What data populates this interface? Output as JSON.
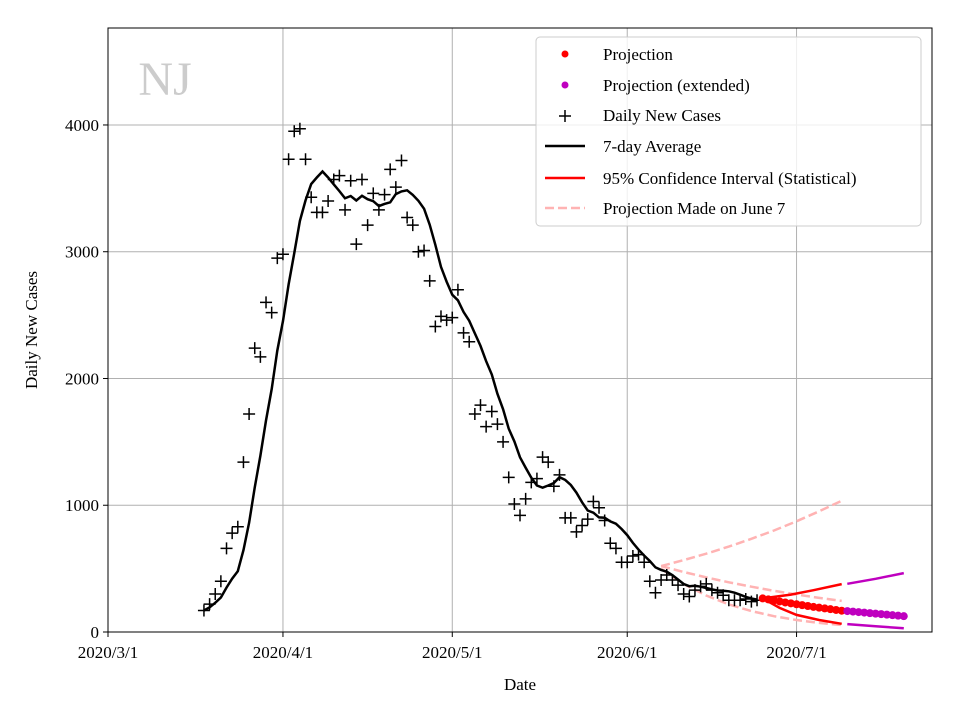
{
  "chart_data": {
    "type": "line",
    "title": "NJ",
    "xlabel": "Date",
    "ylabel": "Daily New Cases",
    "xlim": [
      "2020-03-01",
      "2020-07-25"
    ],
    "ylim": [
      0,
      4765
    ],
    "grid": true,
    "legend_position": "top-right",
    "x_ticks": [
      "2020/3/1",
      "2020/4/1",
      "2020/5/1",
      "2020/6/1",
      "2020/7/1"
    ],
    "x_tick_dates": [
      "2020-03-01",
      "2020-04-01",
      "2020-05-01",
      "2020-06-01",
      "2020-07-01"
    ],
    "y_ticks": [
      0,
      1000,
      2000,
      3000,
      4000
    ],
    "legend": [
      "Projection",
      "Projection (extended)",
      "Daily New Cases",
      "7-day Average",
      "95% Confidence Interval (Statistical)",
      "Projection Made on June 7"
    ],
    "colors": {
      "projection": "#ff0000",
      "extended": "#bf00bf",
      "daily": "#000000",
      "average": "#000000",
      "ci": "#ff0000",
      "june7": "#ffb3b3"
    },
    "daily_start": "2020-03-18",
    "daily_new_cases": [
      170,
      220,
      300,
      400,
      660,
      780,
      830,
      1340,
      1720,
      2240,
      2170,
      2600,
      2520,
      2950,
      2980,
      3730,
      3950,
      3970,
      3730,
      3430,
      3310,
      3310,
      3400,
      3570,
      3600,
      3330,
      3560,
      3060,
      3570,
      3210,
      3460,
      3330,
      3450,
      3650,
      3510,
      3720,
      3270,
      3210,
      3000,
      3010,
      2770,
      2410,
      2490,
      2460,
      2480,
      2700,
      2360,
      2290,
      1720,
      1790,
      1620,
      1740,
      1640,
      1500,
      1220,
      1010,
      920,
      1050,
      1180,
      1210,
      1380,
      1340,
      1150,
      1240,
      900,
      900,
      790,
      840,
      890,
      1030,
      980,
      880,
      700,
      660,
      550,
      550,
      600,
      610,
      550,
      400,
      310,
      410,
      450,
      410,
      370,
      300,
      280,
      330,
      360,
      380,
      330,
      310,
      290,
      250,
      250,
      250,
      260,
      240,
      250
    ],
    "projection_start": "2020-06-25",
    "projection": [
      265,
      257,
      249,
      241,
      233,
      226,
      219,
      212,
      205,
      198,
      192,
      186,
      180,
      174,
      168
    ],
    "projection_extended_start": "2020-07-10",
    "projection_extended": [
      165,
      161,
      157,
      153,
      149,
      145,
      141,
      137,
      133,
      129,
      125
    ],
    "ci_upper": [
      [
        "2020-06-25",
        265
      ],
      [
        "2020-06-30",
        295
      ],
      [
        "2020-07-04",
        330
      ],
      [
        "2020-07-09",
        378
      ]
    ],
    "ci_lower": [
      [
        "2020-06-25",
        265
      ],
      [
        "2020-06-28",
        190
      ],
      [
        "2020-07-01",
        135
      ],
      [
        "2020-07-05",
        95
      ],
      [
        "2020-07-09",
        65
      ]
    ],
    "ci_upper_extended": [
      [
        "2020-07-10",
        380
      ],
      [
        "2020-07-15",
        420
      ],
      [
        "2020-07-20",
        465
      ]
    ],
    "ci_lower_extended": [
      [
        "2020-07-10",
        62
      ],
      [
        "2020-07-15",
        45
      ],
      [
        "2020-07-20",
        30
      ]
    ],
    "june7_dates": [
      "2020-06-07",
      "2020-06-11",
      "2020-06-15",
      "2020-06-19",
      "2020-06-23",
      "2020-06-27",
      "2020-07-01",
      "2020-07-05",
      "2020-07-09"
    ],
    "june7_middle": [
      520,
      473,
      431,
      392,
      357,
      325,
      296,
      269,
      245
    ],
    "june7_upper": [
      520,
      567,
      618,
      674,
      735,
      801,
      873,
      952,
      1035
    ],
    "june7_lower": [
      500,
      379,
      288,
      218,
      165,
      125,
      95,
      72,
      55
    ]
  }
}
